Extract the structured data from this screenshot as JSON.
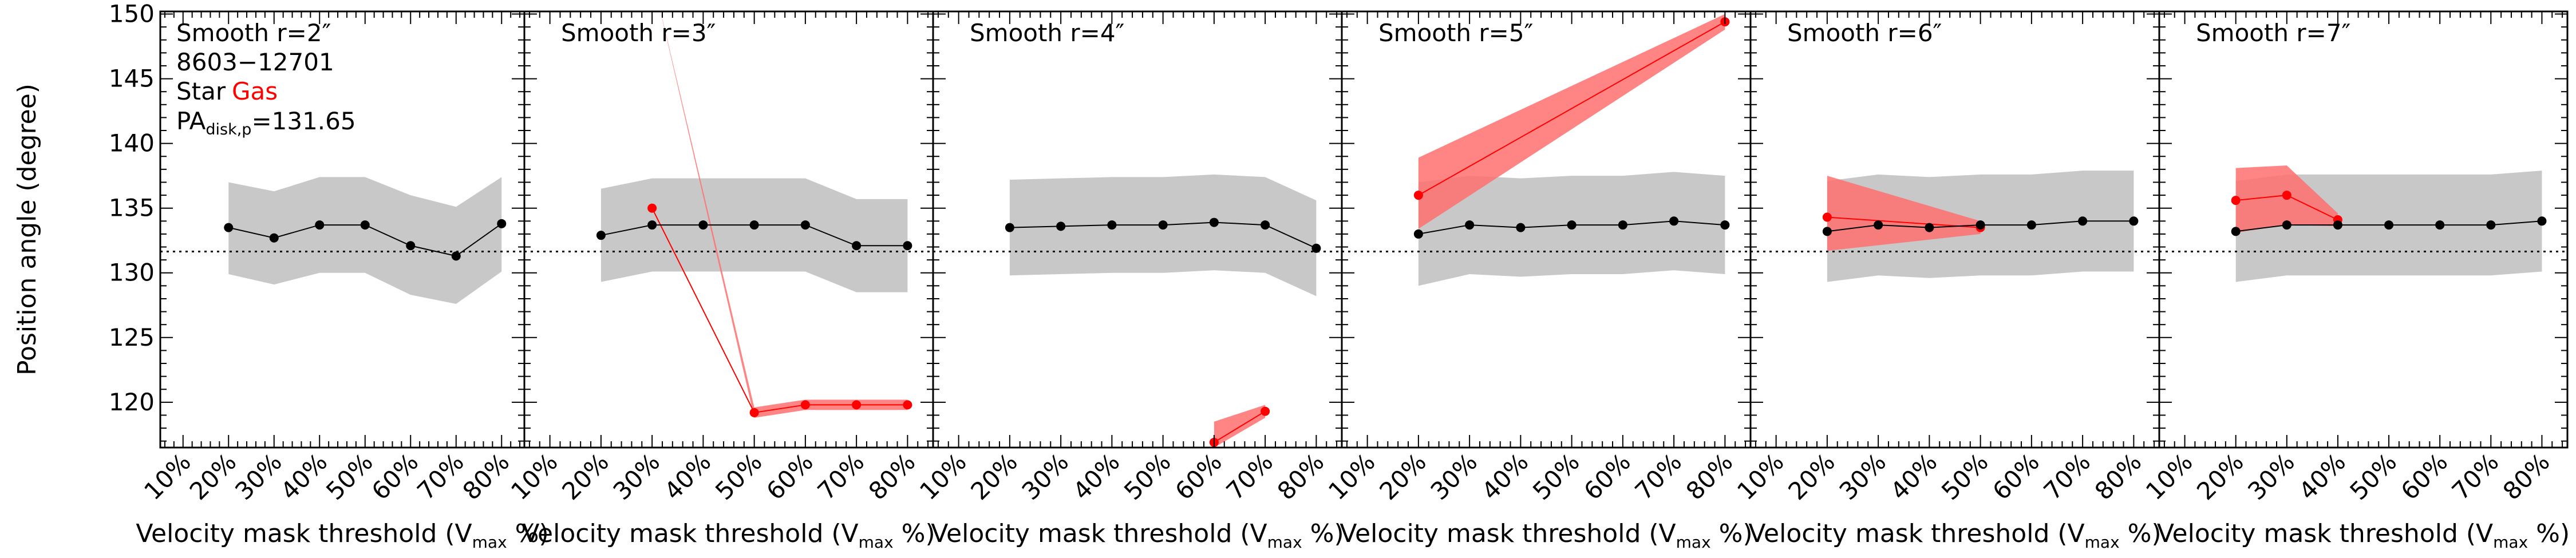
{
  "figure": {
    "ylabel": "Position angle (degree)",
    "xlabel_main": "Velocity mask threshold (V",
    "xlabel_sub": "max",
    "xlabel_tail": " %)",
    "info": {
      "id": "8603−12701",
      "star_label": "Star",
      "gas_label": "Gas",
      "pa_main": "PA",
      "pa_sub": "disk,p",
      "pa_value": "=131.65"
    },
    "colors": {
      "star": "#000000",
      "gas": "#ff0000",
      "gas_band": "#ff7070",
      "star_band": "#c8c8c8"
    }
  },
  "chart_data": [
    {
      "type": "line",
      "title": "Smooth r=2″",
      "x_tick_labels": [
        "10%",
        "20%",
        "30%",
        "40%",
        "50%",
        "60%",
        "70%",
        "80%"
      ],
      "xlim": [
        0.05,
        0.85
      ],
      "ylim": [
        116.5,
        150.2
      ],
      "yticks": [
        120,
        125,
        130,
        135,
        140,
        145,
        150
      ],
      "reference_line": 131.65,
      "star": {
        "x": [
          0.2,
          0.3,
          0.4,
          0.5,
          0.6,
          0.7,
          0.8
        ],
        "values": [
          133.5,
          132.7,
          133.7,
          133.7,
          132.1,
          131.3,
          133.8
        ],
        "upper": [
          137.0,
          136.3,
          137.4,
          137.4,
          136.0,
          135.1,
          137.4
        ],
        "lower": [
          129.9,
          129.1,
          130.0,
          130.0,
          128.3,
          127.6,
          130.1
        ]
      },
      "gas": {
        "x": [],
        "values": [],
        "upper": [],
        "lower": []
      }
    },
    {
      "type": "line",
      "title": "Smooth r=3″",
      "x_tick_labels": [
        "10%",
        "20%",
        "30%",
        "40%",
        "50%",
        "60%",
        "70%",
        "80%"
      ],
      "xlim": [
        0.05,
        0.85
      ],
      "ylim": [
        116.5,
        150.2
      ],
      "yticks": [
        120,
        125,
        130,
        135,
        140,
        145,
        150
      ],
      "reference_line": 131.65,
      "star": {
        "x": [
          0.2,
          0.3,
          0.4,
          0.5,
          0.6,
          0.7,
          0.8
        ],
        "values": [
          132.9,
          133.7,
          133.7,
          133.7,
          133.7,
          132.1,
          132.1
        ],
        "upper": [
          136.5,
          137.3,
          137.3,
          137.3,
          137.3,
          135.7,
          135.7
        ],
        "lower": [
          129.3,
          130.1,
          130.1,
          130.1,
          130.1,
          128.5,
          128.5
        ]
      },
      "gas": {
        "x": [
          0.3,
          0.5,
          0.6,
          0.7,
          0.8
        ],
        "values": [
          135.0,
          119.2,
          119.8,
          119.8,
          119.8
        ],
        "upper": [
          153.0,
          119.6,
          120.2,
          120.2,
          120.2
        ],
        "lower": [
          153.0,
          118.8,
          119.4,
          119.4,
          119.4
        ]
      }
    },
    {
      "type": "line",
      "title": "Smooth r=4″",
      "x_tick_labels": [
        "10%",
        "20%",
        "30%",
        "40%",
        "50%",
        "60%",
        "70%",
        "80%"
      ],
      "xlim": [
        0.05,
        0.85
      ],
      "ylim": [
        116.5,
        150.2
      ],
      "yticks": [
        120,
        125,
        130,
        135,
        140,
        145,
        150
      ],
      "reference_line": 131.65,
      "star": {
        "x": [
          0.2,
          0.3,
          0.4,
          0.5,
          0.6,
          0.7,
          0.8
        ],
        "values": [
          133.5,
          133.6,
          133.7,
          133.7,
          133.9,
          133.7,
          131.9
        ],
        "upper": [
          137.2,
          137.3,
          137.4,
          137.4,
          137.6,
          137.4,
          135.6
        ],
        "lower": [
          129.8,
          129.9,
          130.0,
          130.0,
          130.2,
          130.0,
          128.2
        ]
      },
      "gas": {
        "x": [
          0.6,
          0.7
        ],
        "values": [
          116.9,
          119.3
        ],
        "upper": [
          118.5,
          119.8
        ],
        "lower": [
          116.5,
          118.8
        ]
      }
    },
    {
      "type": "line",
      "title": "Smooth r=5″",
      "x_tick_labels": [
        "10%",
        "20%",
        "30%",
        "40%",
        "50%",
        "60%",
        "70%",
        "80%"
      ],
      "xlim": [
        0.05,
        0.85
      ],
      "ylim": [
        116.5,
        150.2
      ],
      "yticks": [
        120,
        125,
        130,
        135,
        140,
        145,
        150
      ],
      "reference_line": 131.65,
      "star": {
        "x": [
          0.2,
          0.3,
          0.4,
          0.5,
          0.6,
          0.7,
          0.8
        ],
        "values": [
          133.0,
          133.7,
          133.5,
          133.7,
          133.7,
          134.0,
          133.7
        ],
        "upper": [
          137.0,
          137.5,
          137.3,
          137.5,
          137.5,
          137.8,
          137.5
        ],
        "lower": [
          129.0,
          129.9,
          129.7,
          129.9,
          129.9,
          130.2,
          129.9
        ]
      },
      "gas": {
        "x": [
          0.2,
          0.8
        ],
        "values": [
          136.0,
          149.4
        ],
        "upper": [
          138.9,
          150.0
        ],
        "lower": [
          133.4,
          148.8
        ]
      }
    },
    {
      "type": "line",
      "title": "Smooth r=6″",
      "x_tick_labels": [
        "10%",
        "20%",
        "30%",
        "40%",
        "50%",
        "60%",
        "70%",
        "80%"
      ],
      "xlim": [
        0.05,
        0.85
      ],
      "ylim": [
        116.5,
        150.2
      ],
      "yticks": [
        120,
        125,
        130,
        135,
        140,
        145,
        150
      ],
      "reference_line": 131.65,
      "star": {
        "x": [
          0.2,
          0.3,
          0.4,
          0.5,
          0.6,
          0.7,
          0.8
        ],
        "values": [
          133.2,
          133.7,
          133.5,
          133.7,
          133.7,
          134.0,
          134.0
        ],
        "upper": [
          137.1,
          137.6,
          137.4,
          137.6,
          137.6,
          137.9,
          137.9
        ],
        "lower": [
          129.3,
          129.8,
          129.6,
          129.8,
          129.8,
          130.1,
          130.1
        ]
      },
      "gas": {
        "x": [
          0.2,
          0.5
        ],
        "values": [
          134.3,
          133.5
        ],
        "upper": [
          137.5,
          134.0
        ],
        "lower": [
          131.7,
          133.0
        ]
      }
    },
    {
      "type": "line",
      "title": "Smooth r=7″",
      "x_tick_labels": [
        "10%",
        "20%",
        "30%",
        "40%",
        "50%",
        "60%",
        "70%",
        "80%"
      ],
      "xlim": [
        0.05,
        0.85
      ],
      "ylim": [
        116.5,
        150.2
      ],
      "yticks": [
        120,
        125,
        130,
        135,
        140,
        145,
        150
      ],
      "reference_line": 131.65,
      "star": {
        "x": [
          0.2,
          0.3,
          0.4,
          0.5,
          0.6,
          0.7,
          0.8
        ],
        "values": [
          133.2,
          133.7,
          133.7,
          133.7,
          133.7,
          133.7,
          134.0
        ],
        "upper": [
          137.1,
          137.6,
          137.6,
          137.6,
          137.6,
          137.6,
          137.9
        ],
        "lower": [
          129.3,
          129.8,
          129.8,
          129.8,
          129.8,
          129.8,
          130.1
        ]
      },
      "gas": {
        "x": [
          0.2,
          0.3,
          0.4
        ],
        "values": [
          135.6,
          136.0,
          134.1
        ],
        "upper": [
          138.1,
          138.3,
          134.6
        ],
        "lower": [
          133.1,
          133.7,
          133.6
        ]
      }
    }
  ]
}
